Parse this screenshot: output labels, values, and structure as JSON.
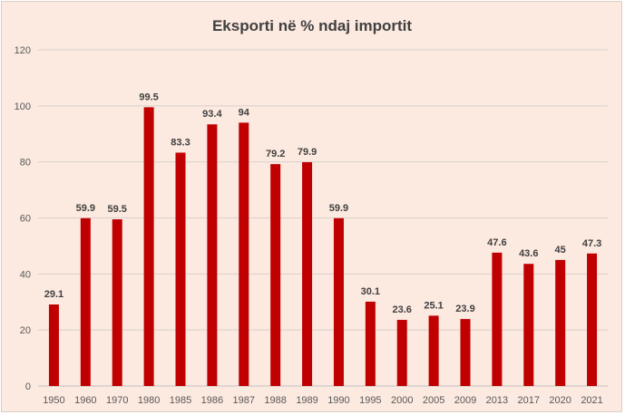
{
  "chart_data": {
    "type": "bar",
    "title": "Eksporti në % ndaj importit",
    "xlabel": "",
    "ylabel": "",
    "categories": [
      "1950",
      "1960",
      "1970",
      "1980",
      "1985",
      "1986",
      "1987",
      "1988",
      "1989",
      "1990",
      "1995",
      "2000",
      "2005",
      "2009",
      "2013",
      "2017",
      "2020",
      "2021"
    ],
    "values": [
      29.1,
      59.9,
      59.5,
      99.5,
      83.3,
      93.4,
      94,
      79.2,
      79.9,
      59.9,
      30.1,
      23.6,
      25.1,
      23.9,
      47.6,
      43.6,
      45,
      47.3
    ],
    "data_labels": [
      "29.1",
      "59.9",
      "59.5",
      "99.5",
      "83.3",
      "93.4",
      "94",
      "79.2",
      "79.9",
      "59.9",
      "30.1",
      "23.6",
      "25.1",
      "23.9",
      "47.6",
      "43.6",
      "45",
      "47.3"
    ],
    "ylim": [
      0,
      120
    ],
    "yticks": [
      0,
      20,
      40,
      60,
      80,
      100,
      120
    ],
    "ytick_labels": [
      "0",
      "20",
      "40",
      "60",
      "80",
      "100",
      "120"
    ],
    "grid": true,
    "legend": "none",
    "bar_color": "#c00000",
    "background_color": "#fce9e0"
  }
}
